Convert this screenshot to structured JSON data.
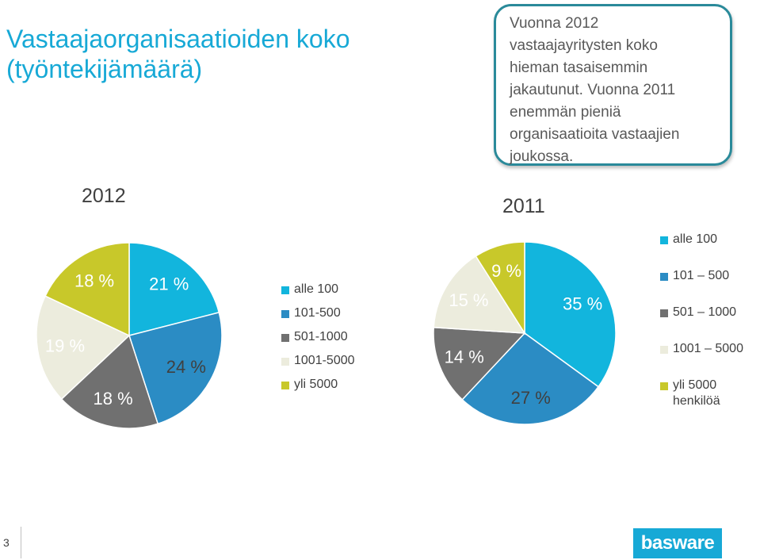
{
  "title": "Vastaajaorganisaatioiden koko (työntekijämäärä)",
  "callout": {
    "lines": [
      "Vuonna 2012",
      "vastaajayritysten koko",
      "hieman tasaisemmin",
      "jakautunut. Vuonna 2011",
      "enemmän pieniä",
      "organisaatioita vastaajien",
      "joukossa."
    ]
  },
  "page_number": "3",
  "logo_text": "basware",
  "colors": {
    "alle_100": "#12b5dd",
    "101_500": "#2b8cc4",
    "501_1000": "#707070",
    "1001_5000": "#ececdd",
    "yli_5000": "#c8c82a",
    "label_light": "#ffffff",
    "label_dark": "#404040"
  },
  "chart_data": [
    {
      "type": "pie",
      "title": "2012",
      "legend": [
        "alle 100",
        "101-500",
        "501-1000",
        "1001-5000",
        "yli 5000"
      ],
      "legend_position": "right",
      "slices": [
        {
          "name": "alle 100",
          "value": 21,
          "label": "21 %"
        },
        {
          "name": "101-500",
          "value": 24,
          "label": "24 %"
        },
        {
          "name": "501-1000",
          "value": 18,
          "label": "18 %"
        },
        {
          "name": "1001-5000",
          "value": 19,
          "label": "19 %"
        },
        {
          "name": "yli 5000",
          "value": 18,
          "label": "18 %"
        }
      ]
    },
    {
      "type": "pie",
      "title": "2011",
      "legend": [
        "alle 100",
        "101 – 500",
        "501 – 1000",
        "1001 – 5000",
        "yli 5000 henkilöä"
      ],
      "legend_position": "right",
      "slices": [
        {
          "name": "alle 100",
          "value": 35,
          "label": "35 %"
        },
        {
          "name": "101 – 500",
          "value": 27,
          "label": "27 %"
        },
        {
          "name": "501 – 1000",
          "value": 14,
          "label": "14 %"
        },
        {
          "name": "1001 – 5000",
          "value": 15,
          "label": "15 %"
        },
        {
          "name": "yli 5000 henkilöä",
          "value": 9,
          "label": "9 %"
        }
      ]
    }
  ]
}
